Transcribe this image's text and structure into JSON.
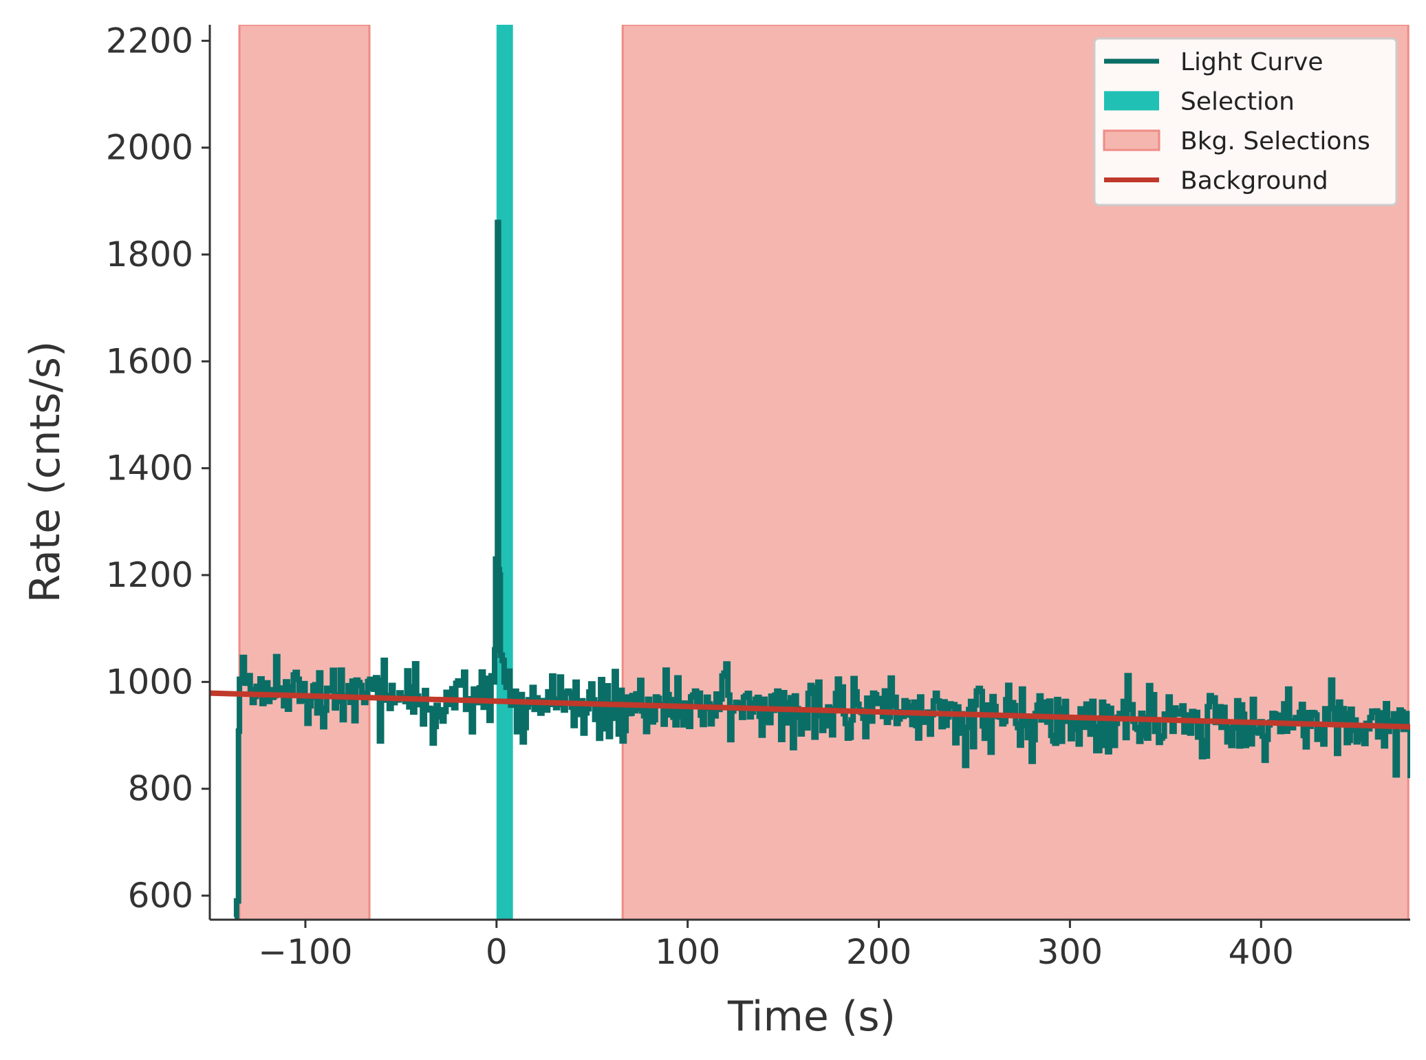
{
  "chart_data": {
    "type": "line",
    "title": "",
    "xlabel": "Time (s)",
    "ylabel": "Rate (cnts/s)",
    "xlim": [
      -150,
      478
    ],
    "ylim": [
      555,
      2230
    ],
    "xticks": [
      -100,
      0,
      100,
      200,
      300,
      400
    ],
    "xtick_labels": [
      "−100",
      "0",
      "100",
      "200",
      "300",
      "400"
    ],
    "yticks": [
      600,
      800,
      1000,
      1200,
      1400,
      1600,
      1800,
      2000,
      2200
    ],
    "ytick_labels": [
      "600",
      "800",
      "1000",
      "1200",
      "1400",
      "1600",
      "1800",
      "2000",
      "2200"
    ],
    "legend": {
      "position": "top-right",
      "entries": [
        {
          "label": "Light Curve",
          "kind": "line",
          "color": "#0a6e66"
        },
        {
          "label": "Selection",
          "kind": "patch",
          "color": "#20c0b4"
        },
        {
          "label": "Bkg. Selections",
          "kind": "patch",
          "color": "#f5b6b0"
        },
        {
          "label": "Background",
          "kind": "line",
          "color": "#c0392b"
        }
      ]
    },
    "light_curve": {
      "name": "Light Curve",
      "color": "#0a6e66",
      "bin_width": 1.024,
      "t_start": -136.0,
      "t_end": 478.0,
      "baseline_start": 978,
      "baseline_end": 914,
      "noise_amplitude": 30,
      "pre_trigger_start": [
        [
          -137.0,
          560
        ],
        [
          -136.0,
          590
        ],
        [
          -134.5,
          1005
        ]
      ],
      "peak_points": [
        [
          -2.0,
          1000
        ],
        [
          -1.0,
          1060
        ],
        [
          -0.5,
          1230
        ],
        [
          0.0,
          1120
        ],
        [
          0.5,
          1860
        ],
        [
          1.0,
          1210
        ],
        [
          1.5,
          1200
        ],
        [
          2.0,
          1050
        ],
        [
          3.0,
          1040
        ],
        [
          4.0,
          1000
        ],
        [
          5.0,
          990
        ],
        [
          6.0,
          1020
        ],
        [
          7.0,
          970
        ]
      ],
      "final_point": [
        478.0,
        820
      ]
    },
    "selection": {
      "name": "Selection",
      "color": "#20c0b4",
      "range": [
        0.0,
        8.6
      ]
    },
    "bkg_selections": {
      "name": "Bkg. Selections",
      "color": "#f5b6b0",
      "edge_color": "#ee8c84",
      "ranges": [
        [
          -134.5,
          -66.5
        ],
        [
          66.0,
          477.0
        ]
      ]
    },
    "background": {
      "name": "Background",
      "color": "#c0392b",
      "points": [
        [
          -150,
          979
        ],
        [
          478,
          916
        ]
      ]
    }
  }
}
